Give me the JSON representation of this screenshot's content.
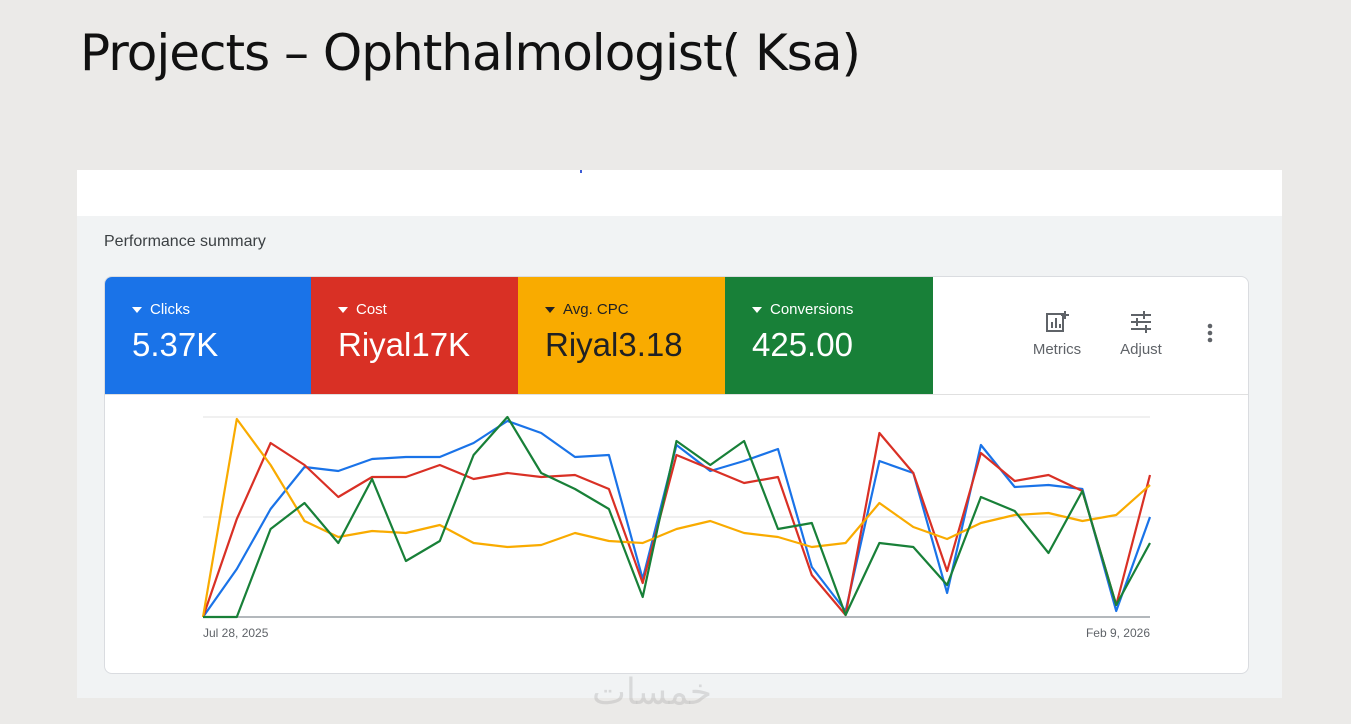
{
  "slide": {
    "title": "Projects – Ophthalmologist( Ksa)",
    "watermark": "خمسات"
  },
  "panel": {
    "summary_label": "Performance summary"
  },
  "metrics": [
    {
      "label": "Clicks",
      "value": "5.37K",
      "color": "#1a73e8"
    },
    {
      "label": "Cost",
      "value": "Riyal17K",
      "color": "#d93025"
    },
    {
      "label": "Avg. CPC",
      "value": "Riyal3.18",
      "color": "#f9ab00"
    },
    {
      "label": "Conversions",
      "value": "425.00",
      "color": "#188038"
    }
  ],
  "toolbar": {
    "metrics_label": "Metrics",
    "adjust_label": "Adjust",
    "metrics_icon": "bar-chart-add-icon",
    "adjust_icon": "tune-sliders-icon",
    "more_icon": "more-vert-icon"
  },
  "chart_data": {
    "type": "line",
    "x_start_label": "Jul 28, 2025",
    "x_end_label": "Feb 9, 2026",
    "x_points": 29,
    "normalized": true,
    "ylim": [
      0,
      100
    ],
    "grid": true,
    "series": [
      {
        "color": "#1a73e8",
        "values": [
          0,
          24,
          54,
          75,
          73,
          79,
          80,
          80,
          87,
          98,
          92,
          80,
          81,
          19,
          86,
          73,
          78,
          84,
          25,
          3,
          78,
          72,
          12,
          86,
          65,
          66,
          64,
          3,
          50
        ]
      },
      {
        "color": "#d93025",
        "values": [
          0,
          49,
          87,
          76,
          60,
          70,
          70,
          76,
          69,
          72,
          70,
          71,
          64,
          17,
          81,
          74,
          67,
          70,
          21,
          1,
          92,
          72,
          23,
          82,
          68,
          71,
          63,
          6,
          71
        ]
      },
      {
        "color": "#f9ab00",
        "values": [
          0,
          99,
          76,
          48,
          40,
          43,
          42,
          46,
          37,
          35,
          36,
          42,
          38,
          37,
          44,
          48,
          42,
          40,
          35,
          37,
          57,
          45,
          39,
          47,
          51,
          52,
          48,
          51,
          66
        ]
      },
      {
        "color": "#188038",
        "values": [
          0,
          0,
          44,
          57,
          37,
          69,
          28,
          38,
          81,
          100,
          72,
          64,
          54,
          10,
          88,
          76,
          88,
          44,
          47,
          1,
          37,
          35,
          16,
          60,
          53,
          32,
          63,
          6,
          37
        ]
      }
    ]
  }
}
